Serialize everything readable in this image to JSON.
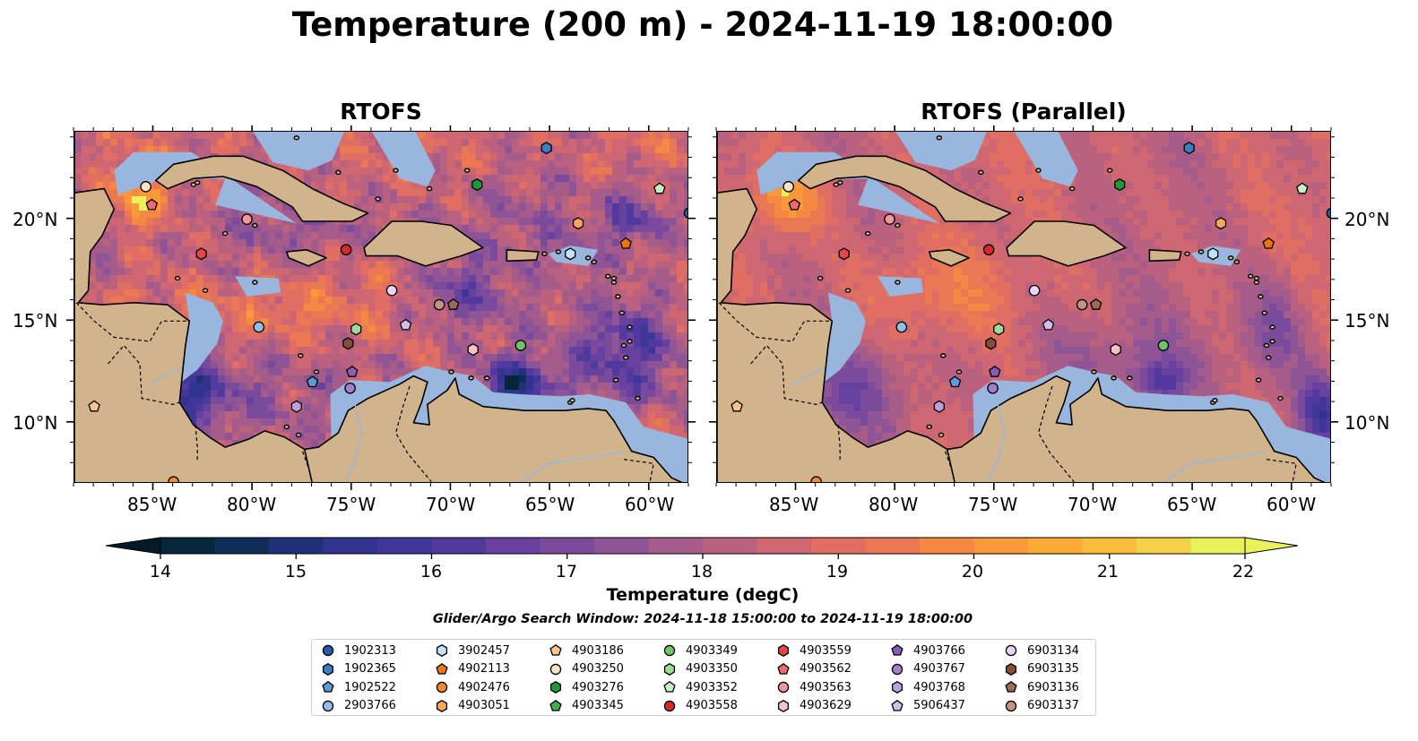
{
  "title": "Temperature (200 m) - 2024-11-19 18:00:00",
  "panels": [
    {
      "title": "RTOFS",
      "variant": "main"
    },
    {
      "title": "RTOFS (Parallel)",
      "variant": "parallel"
    }
  ],
  "lon_ticks": [
    "85°W",
    "80°W",
    "75°W",
    "70°W",
    "65°W",
    "60°W"
  ],
  "lat_ticks": [
    "20°N",
    "15°N",
    "10°N"
  ],
  "map_extent": {
    "lon_min": -89,
    "lon_max": -58,
    "lat_min": 7,
    "lat_max": 24.3
  },
  "colorbar": {
    "label": "Temperature (degC)",
    "min": 14,
    "max": 22,
    "step": 0.5,
    "ticks": [
      "14",
      "15",
      "16",
      "17",
      "18",
      "19",
      "20",
      "21",
      "22"
    ],
    "colors": [
      "#06263a",
      "#0f2d57",
      "#1f3277",
      "#30348f",
      "#3f369a",
      "#52399e",
      "#66419f",
      "#7a4b9d",
      "#8f5496",
      "#a55c8b",
      "#ba617f",
      "#cf6773",
      "#e06e63",
      "#ea7852",
      "#f58843",
      "#fb9839",
      "#fbaa36",
      "#fbbd3c",
      "#f5d049",
      "#e9f25a"
    ],
    "under_color": "#041a26",
    "over_color": "#e9f25a"
  },
  "search_window": "Glider/Argo Search Window: 2024-11-18 15:00:00 to 2024-11-19 18:00:00",
  "legend": [
    {
      "id": "1902313",
      "marker": "circle",
      "color": "#1f5fa8"
    },
    {
      "id": "1902365",
      "marker": "hexagon",
      "color": "#3b7dc4"
    },
    {
      "id": "1902522",
      "marker": "pentagon",
      "color": "#5c9ad8"
    },
    {
      "id": "2903766",
      "marker": "circle",
      "color": "#8ec0e8"
    },
    {
      "id": "3902457",
      "marker": "hexagon",
      "color": "#c5e3f6"
    },
    {
      "id": "4902113",
      "marker": "pentagon",
      "color": "#ee7410"
    },
    {
      "id": "4902476",
      "marker": "circle",
      "color": "#f58a2a"
    },
    {
      "id": "4903051",
      "marker": "hexagon",
      "color": "#fba55d"
    },
    {
      "id": "4903186",
      "marker": "pentagon",
      "color": "#fdc48c"
    },
    {
      "id": "4903250",
      "marker": "circle",
      "color": "#fde2c4"
    },
    {
      "id": "4903276",
      "marker": "hexagon",
      "color": "#1e9a35"
    },
    {
      "id": "4903345",
      "marker": "pentagon",
      "color": "#3eb04c"
    },
    {
      "id": "4903349",
      "marker": "circle",
      "color": "#6cc56b"
    },
    {
      "id": "4903350",
      "marker": "hexagon",
      "color": "#9fdb97"
    },
    {
      "id": "4903352",
      "marker": "pentagon",
      "color": "#c8efc2"
    },
    {
      "id": "4903558",
      "marker": "circle",
      "color": "#d42a2a"
    },
    {
      "id": "4903559",
      "marker": "hexagon",
      "color": "#e04848"
    },
    {
      "id": "4903562",
      "marker": "pentagon",
      "color": "#ec6a72"
    },
    {
      "id": "4903563",
      "marker": "circle",
      "color": "#f0979b"
    },
    {
      "id": "4903629",
      "marker": "hexagon",
      "color": "#f8c2c4"
    },
    {
      "id": "4903766",
      "marker": "pentagon",
      "color": "#8a5cb8"
    },
    {
      "id": "4903767",
      "marker": "circle",
      "color": "#a47fcc"
    },
    {
      "id": "4903768",
      "marker": "hexagon",
      "color": "#bc9fdc"
    },
    {
      "id": "5906437",
      "marker": "pentagon",
      "color": "#d3bdeb"
    },
    {
      "id": "6903134",
      "marker": "circle",
      "color": "#e8d6f8"
    },
    {
      "id": "6903135",
      "marker": "hexagon",
      "color": "#84503a"
    },
    {
      "id": "6903136",
      "marker": "pentagon",
      "color": "#9d6a56"
    },
    {
      "id": "6903137",
      "marker": "circle",
      "color": "#c29482"
    }
  ],
  "floats": [
    {
      "id": "1902365",
      "lon": -65.2,
      "lat": 23.5
    },
    {
      "id": "4903276",
      "lon": -68.7,
      "lat": 21.7
    },
    {
      "id": "4903352",
      "lon": -59.5,
      "lat": 21.5
    },
    {
      "id": "1902313",
      "lon": -58.0,
      "lat": 20.3
    },
    {
      "id": "4903250",
      "lon": -85.4,
      "lat": 21.6
    },
    {
      "id": "4903562",
      "lon": -85.1,
      "lat": 20.7
    },
    {
      "id": "4903563",
      "lon": -80.3,
      "lat": 20.0
    },
    {
      "id": "4903051",
      "lon": -63.6,
      "lat": 19.8
    },
    {
      "id": "4902113",
      "lon": -61.2,
      "lat": 18.8
    },
    {
      "id": "4903558",
      "lon": -75.3,
      "lat": 18.5
    },
    {
      "id": "4903559",
      "lon": -82.6,
      "lat": 18.3
    },
    {
      "id": "3902457",
      "lon": -64.0,
      "lat": 18.3
    },
    {
      "id": "6903134",
      "lon": -73.0,
      "lat": 16.5
    },
    {
      "id": "6903137",
      "lon": -70.6,
      "lat": 15.8
    },
    {
      "id": "6903136",
      "lon": -69.9,
      "lat": 15.8
    },
    {
      "id": "2903766",
      "lon": -79.7,
      "lat": 14.7
    },
    {
      "id": "4903350",
      "lon": -74.8,
      "lat": 14.6
    },
    {
      "id": "5906437",
      "lon": -72.3,
      "lat": 14.8
    },
    {
      "id": "6903135",
      "lon": -75.2,
      "lat": 13.9
    },
    {
      "id": "4903629",
      "lon": -68.9,
      "lat": 13.6
    },
    {
      "id": "4903349",
      "lon": -66.5,
      "lat": 13.8
    },
    {
      "id": "4903766",
      "lon": -75.0,
      "lat": 12.5
    },
    {
      "id": "1902522",
      "lon": -77.0,
      "lat": 12.0
    },
    {
      "id": "4903767",
      "lon": -75.1,
      "lat": 11.7
    },
    {
      "id": "4903768",
      "lon": -77.8,
      "lat": 10.8
    },
    {
      "id": "4903186",
      "lon": -88.0,
      "lat": 10.8
    },
    {
      "id": "4902476",
      "lon": -84.0,
      "lat": 7.1
    }
  ]
}
